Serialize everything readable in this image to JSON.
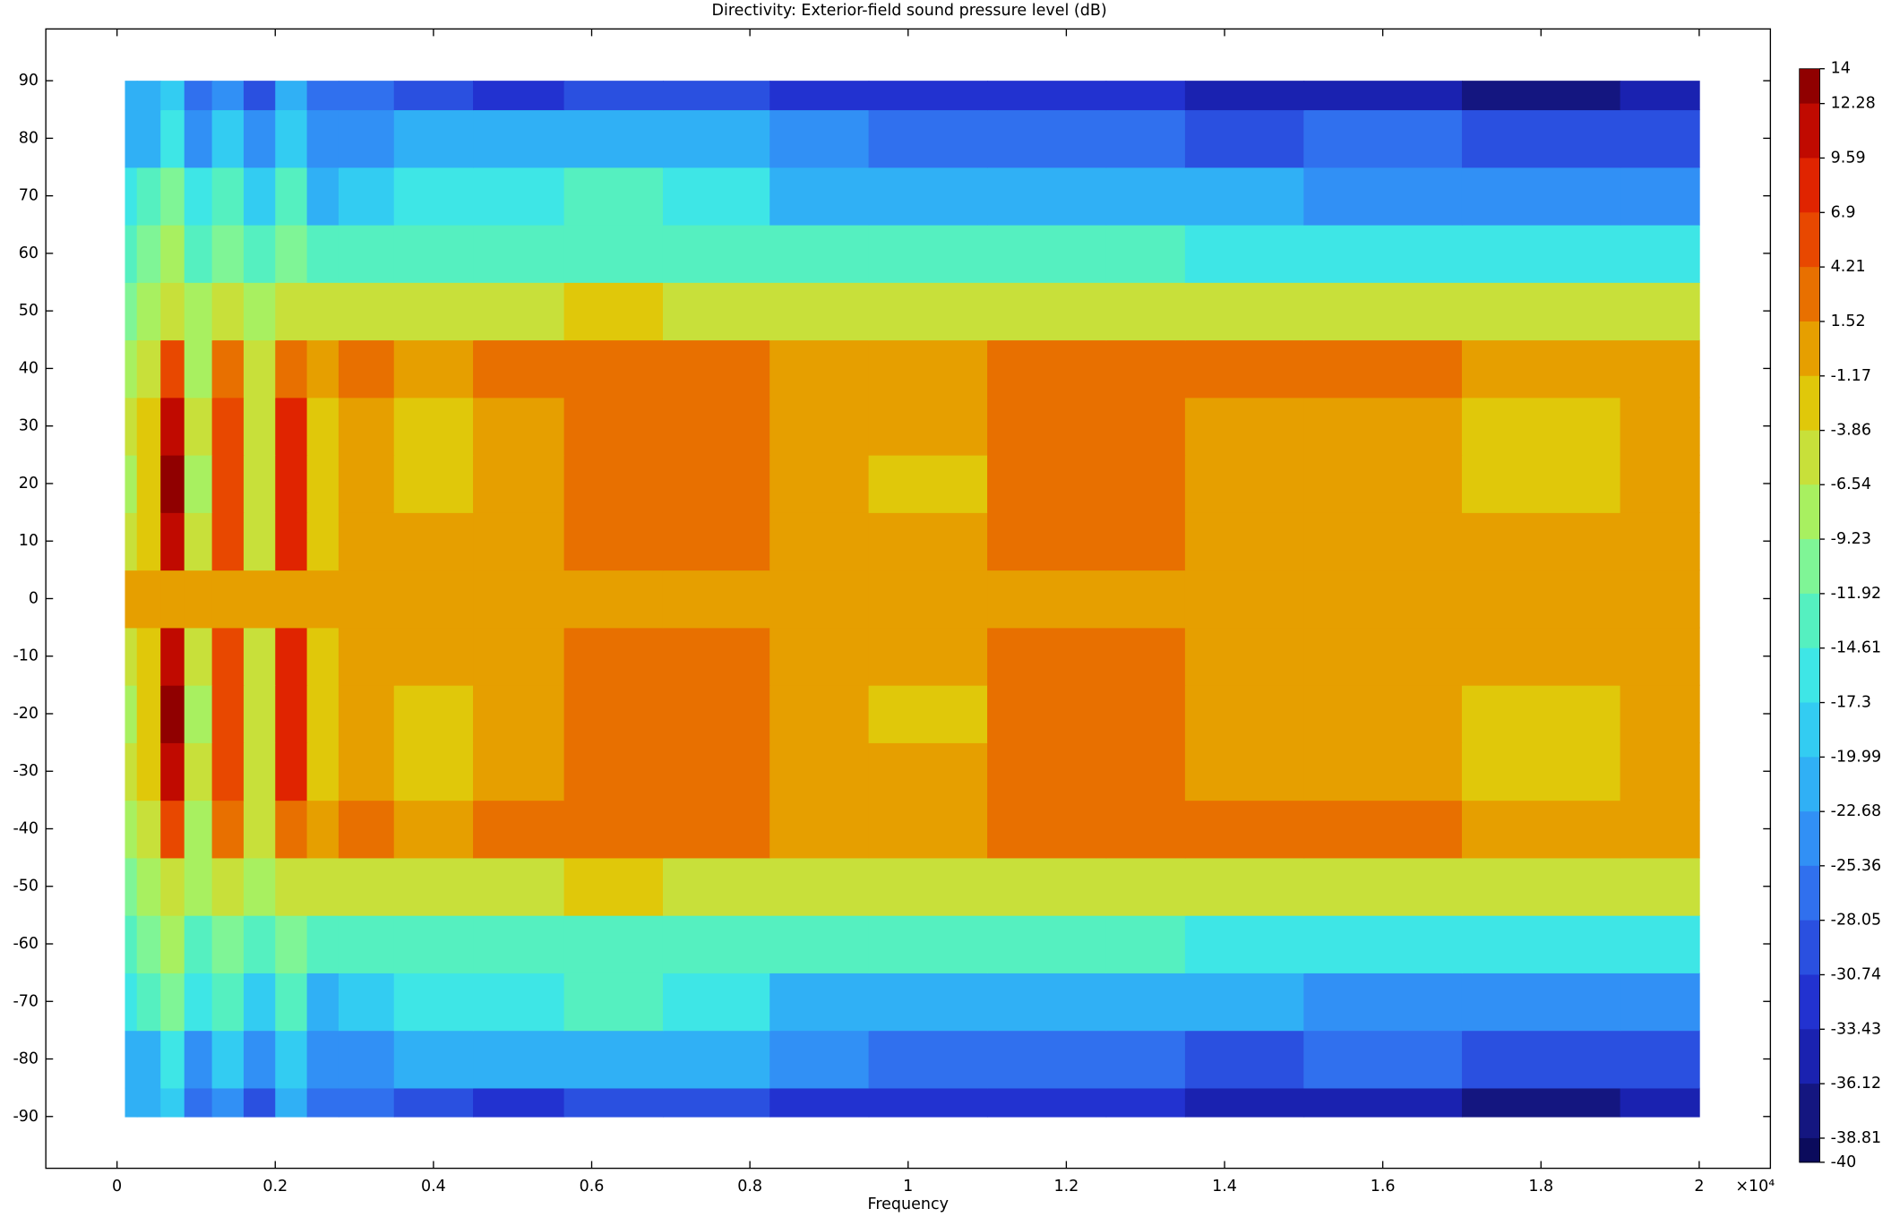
{
  "chart_data": {
    "type": "contour",
    "title": "Directivity: Exterior-field sound pressure level (dB)",
    "xlabel": "Frequency",
    "x_multiplier": "×10⁴",
    "x": [
      100,
      400,
      700,
      1000,
      1400,
      1800,
      2200,
      2600,
      3000,
      4000,
      5000,
      6300,
      7500,
      9000,
      10000,
      12000,
      13000,
      14000,
      16000,
      18000,
      20000
    ],
    "y": [
      -90,
      -80,
      -70,
      -60,
      -50,
      -40,
      -30,
      -20,
      -10,
      0,
      10,
      20,
      30,
      40,
      50,
      60,
      70,
      80,
      90
    ],
    "z": [
      [
        -22,
        -22,
        -18,
        -28,
        -24,
        -30,
        -22,
        -28,
        -28,
        -30,
        -31,
        -29,
        -30,
        -32,
        -32,
        -33,
        -33,
        -34,
        -35,
        -38,
        -35
      ],
      [
        -20,
        -20,
        -15,
        -24,
        -18,
        -24,
        -19,
        -23,
        -24,
        -22,
        -22,
        -20,
        -22,
        -25,
        -26,
        -27,
        -27,
        -29,
        -28,
        -30,
        -30
      ],
      [
        -15,
        -14,
        -11,
        -17,
        -13,
        -19,
        -14,
        -20,
        -19,
        -17,
        -17,
        -14,
        -17,
        -20,
        -21,
        -22,
        -22,
        -22,
        -23,
        -24,
        -24
      ],
      [
        -13,
        -11,
        -9,
        -13,
        -10,
        -13,
        -10,
        -12,
        -13,
        -13,
        -13,
        -12,
        -13,
        -13,
        -13,
        -14,
        -14,
        -15,
        -15,
        -16,
        -16
      ],
      [
        -10,
        -7,
        -5,
        -9,
        -6,
        -9,
        -5,
        -4,
        -4,
        -4,
        -4,
        -3,
        -4,
        -4,
        -4,
        -4,
        -4,
        -4,
        -4,
        -4,
        -4
      ],
      [
        -8,
        -4,
        5,
        -7,
        3,
        -6,
        4,
        -1,
        2,
        0,
        2,
        4,
        2,
        0,
        0,
        2,
        3,
        2,
        2,
        0,
        0
      ],
      [
        -6,
        -3,
        11,
        -6,
        6,
        -5,
        9,
        -2,
        0,
        -2,
        0,
        3,
        3,
        0,
        0,
        3,
        3,
        0,
        0,
        -2,
        0
      ],
      [
        -7,
        -3,
        13,
        -7,
        5,
        -6,
        7,
        -2,
        0,
        -2,
        0,
        3,
        3,
        0,
        -2,
        3,
        3,
        0,
        0,
        -2,
        0
      ],
      [
        -5,
        -3,
        12,
        -6,
        6,
        -4,
        7,
        -3,
        0,
        -1,
        0,
        3,
        3,
        0,
        0,
        3,
        3,
        0,
        0,
        0,
        0
      ],
      [
        0,
        0,
        0,
        0,
        0,
        0,
        0,
        0,
        0,
        0,
        0,
        0,
        0,
        0,
        0,
        0,
        0,
        0,
        0,
        0,
        0
      ],
      [
        -5,
        -3,
        12,
        -6,
        6,
        -4,
        7,
        -3,
        0,
        -1,
        0,
        3,
        3,
        0,
        0,
        3,
        3,
        0,
        0,
        0,
        0
      ],
      [
        -7,
        -3,
        13,
        -7,
        5,
        -6,
        7,
        -2,
        0,
        -2,
        0,
        3,
        3,
        0,
        -2,
        3,
        3,
        0,
        0,
        -2,
        0
      ],
      [
        -6,
        -3,
        11,
        -6,
        6,
        -5,
        9,
        -2,
        0,
        -2,
        0,
        3,
        3,
        0,
        0,
        3,
        3,
        0,
        0,
        -2,
        0
      ],
      [
        -8,
        -4,
        5,
        -7,
        3,
        -6,
        4,
        -1,
        2,
        0,
        2,
        4,
        2,
        0,
        0,
        2,
        3,
        2,
        2,
        0,
        0
      ],
      [
        -10,
        -7,
        -5,
        -9,
        -6,
        -9,
        -5,
        -4,
        -4,
        -4,
        -4,
        -3,
        -4,
        -4,
        -4,
        -4,
        -4,
        -4,
        -4,
        -4,
        -4
      ],
      [
        -13,
        -11,
        -9,
        -13,
        -10,
        -13,
        -10,
        -12,
        -13,
        -13,
        -13,
        -12,
        -13,
        -13,
        -13,
        -14,
        -14,
        -15,
        -15,
        -16,
        -16
      ],
      [
        -15,
        -14,
        -11,
        -17,
        -13,
        -19,
        -14,
        -20,
        -19,
        -17,
        -17,
        -14,
        -17,
        -20,
        -21,
        -22,
        -22,
        -22,
        -23,
        -24,
        -24
      ],
      [
        -20,
        -20,
        -15,
        -24,
        -18,
        -24,
        -19,
        -23,
        -24,
        -22,
        -22,
        -20,
        -22,
        -25,
        -26,
        -27,
        -27,
        -29,
        -28,
        -30,
        -30
      ],
      [
        -22,
        -22,
        -18,
        -28,
        -24,
        -30,
        -22,
        -28,
        -28,
        -30,
        -31,
        -29,
        -30,
        -32,
        -32,
        -33,
        -33,
        -34,
        -35,
        -38,
        -35
      ]
    ],
    "xlim": [
      -900,
      20900
    ],
    "ylim": [
      -99,
      99
    ],
    "xticks": [
      0,
      {
        "value": 2000,
        "label": "0.2"
      },
      {
        "value": 4000,
        "label": "0.4"
      },
      {
        "value": 6000,
        "label": "0.6"
      },
      {
        "value": 8000,
        "label": "0.8"
      },
      {
        "value": 10000,
        "label": "1"
      },
      {
        "value": 12000,
        "label": "1.2"
      },
      {
        "value": 14000,
        "label": "1.4"
      },
      {
        "value": 16000,
        "label": "1.6"
      },
      {
        "value": 18000,
        "label": "1.8"
      },
      {
        "value": 20000,
        "label": "2"
      }
    ],
    "yticks": [
      -90,
      -80,
      -70,
      -60,
      -50,
      -40,
      -30,
      -20,
      -10,
      0,
      10,
      20,
      30,
      40,
      50,
      60,
      70,
      80,
      90
    ],
    "colorbar": {
      "ticks": [
        14,
        12.28,
        9.59,
        6.9,
        4.21,
        1.52,
        -1.17,
        -3.86,
        -6.54,
        -9.23,
        -11.92,
        -14.61,
        -17.3,
        -19.99,
        -22.68,
        -25.36,
        -28.05,
        -30.74,
        -33.43,
        -36.12,
        -38.81,
        -40
      ],
      "colors": [
        "#900000",
        "#c00a00",
        "#e02400",
        "#e84800",
        "#e87000",
        "#e69f00",
        "#e0c80a",
        "#c8e03a",
        "#a8f060",
        "#7ff596",
        "#55f0c0",
        "#3ee6e6",
        "#33ccf2",
        "#30b0f5",
        "#3190f5",
        "#3070ee",
        "#2a50e0",
        "#2232d0",
        "#1a22b0",
        "#141680",
        "#0b0b5c"
      ]
    }
  }
}
